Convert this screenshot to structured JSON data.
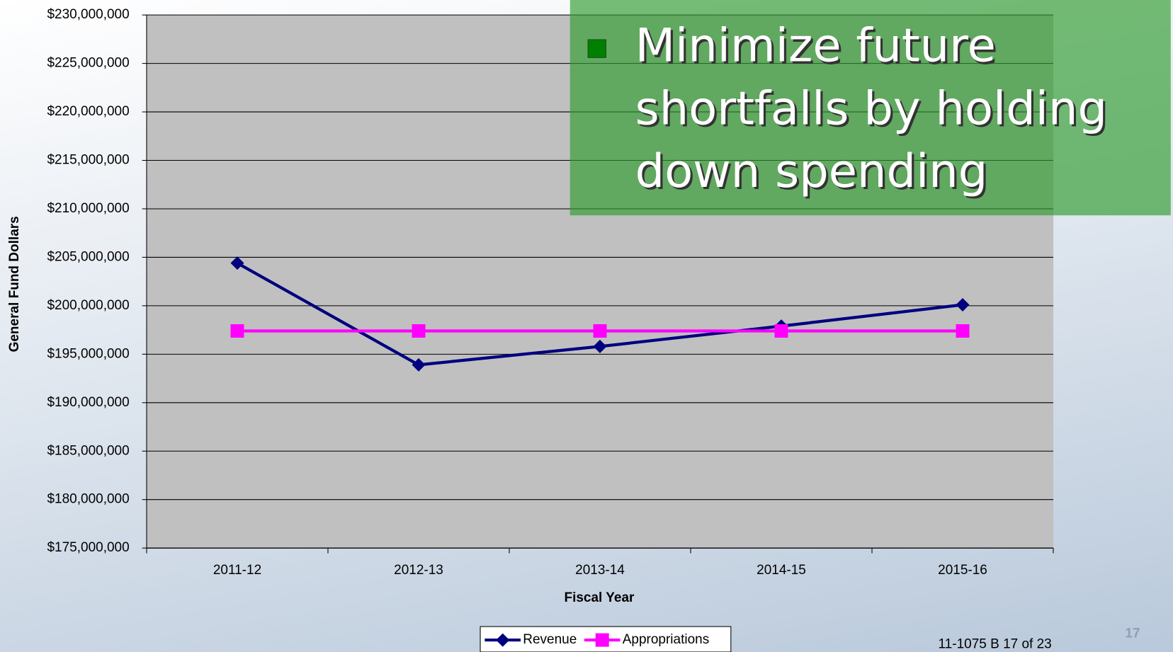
{
  "chart_data": {
    "type": "line",
    "categories": [
      "2011-12",
      "2012-13",
      "2013-14",
      "2014-15",
      "2015-16"
    ],
    "series": [
      {
        "name": "Revenue",
        "color": "#000080",
        "marker": "diamond",
        "values": [
          204400000,
          193900000,
          195800000,
          197900000,
          200100000
        ]
      },
      {
        "name": "Appropriations",
        "color": "#ff00ff",
        "marker": "square",
        "values": [
          197400000,
          197400000,
          197400000,
          197400000,
          197400000
        ]
      }
    ],
    "x_label": "Fiscal Year",
    "y_label": "General Fund Dollars",
    "ylim": [
      175000000,
      230000000
    ],
    "yticks": [
      {
        "value": 175000000,
        "label": "$175,000,000"
      },
      {
        "value": 180000000,
        "label": "$180,000,000"
      },
      {
        "value": 185000000,
        "label": "$185,000,000"
      },
      {
        "value": 190000000,
        "label": "$190,000,000"
      },
      {
        "value": 195000000,
        "label": "$195,000,000"
      },
      {
        "value": 200000000,
        "label": "$200,000,000"
      },
      {
        "value": 205000000,
        "label": "$205,000,000"
      },
      {
        "value": 210000000,
        "label": "$210,000,000"
      },
      {
        "value": 215000000,
        "label": "$215,000,000"
      },
      {
        "value": 220000000,
        "label": "$220,000,000"
      },
      {
        "value": 225000000,
        "label": "$225,000,000"
      },
      {
        "value": 230000000,
        "label": "$230,000,000"
      }
    ],
    "grid": true,
    "legend": "bottom",
    "annotation": [
      "Minimize future",
      "shortfalls by holding",
      "down spending"
    ]
  },
  "footer": "11-1075 B 17 of 23",
  "slide_number": "17"
}
